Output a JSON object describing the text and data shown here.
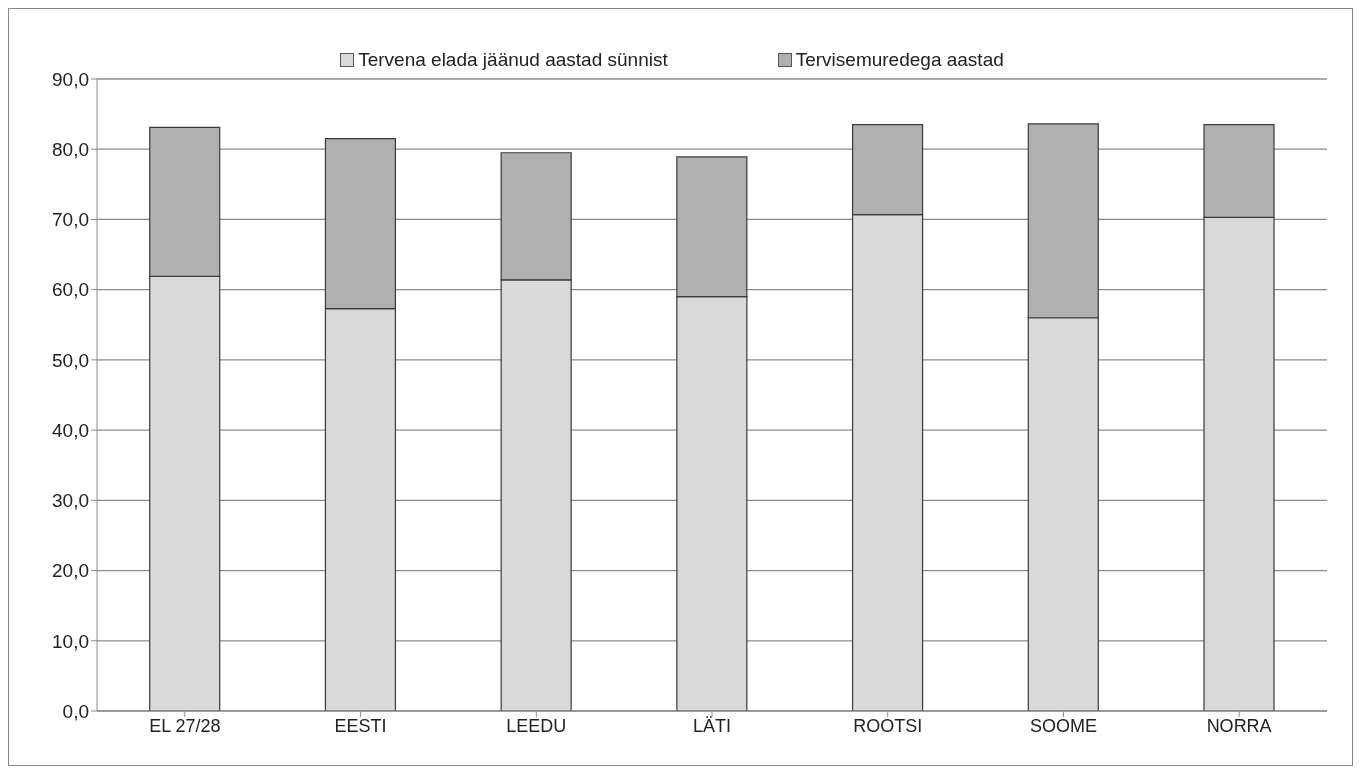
{
  "chart_data": {
    "type": "bar",
    "stacked": true,
    "categories": [
      "EL 27/28",
      "EESTI",
      "LEEDU",
      "LÄTI",
      "ROOTSI",
      "SOOME",
      "NORRA"
    ],
    "series": [
      {
        "name": "Tervena elada jäänud aastad sünnist",
        "color": "#d9d9d9",
        "values": [
          61.9,
          57.3,
          61.4,
          59.0,
          70.7,
          56.0,
          70.3
        ]
      },
      {
        "name": "Tervisemuredega aastad",
        "color": "#b0b0b0",
        "values": [
          21.2,
          24.2,
          18.1,
          19.9,
          12.8,
          27.6,
          13.2
        ]
      }
    ],
    "ylim": [
      0,
      90
    ],
    "yticks": [
      {
        "value": 0,
        "label": "0,0"
      },
      {
        "value": 10,
        "label": "10,0"
      },
      {
        "value": 20,
        "label": "20,0"
      },
      {
        "value": 30,
        "label": "30,0"
      },
      {
        "value": 40,
        "label": "40,0"
      },
      {
        "value": 50,
        "label": "50,0"
      },
      {
        "value": 60,
        "label": "60,0"
      },
      {
        "value": 70,
        "label": "70,0"
      },
      {
        "value": 80,
        "label": "80,0"
      },
      {
        "value": 90,
        "label": "90,0"
      }
    ],
    "grid": "y",
    "legend": "top"
  }
}
